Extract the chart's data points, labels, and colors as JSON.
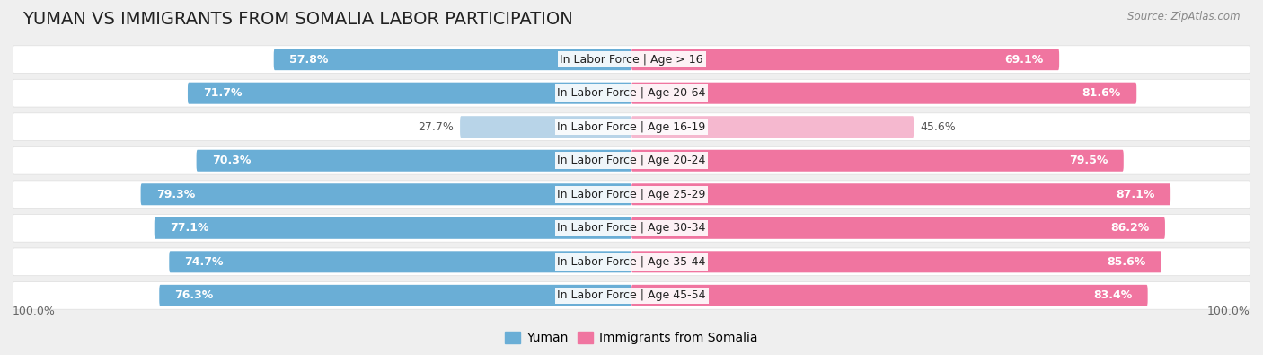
{
  "title": "Yuman vs Immigrants from Somalia Labor Participation",
  "source": "Source: ZipAtlas.com",
  "categories": [
    "In Labor Force | Age > 16",
    "In Labor Force | Age 20-64",
    "In Labor Force | Age 16-19",
    "In Labor Force | Age 20-24",
    "In Labor Force | Age 25-29",
    "In Labor Force | Age 30-34",
    "In Labor Force | Age 35-44",
    "In Labor Force | Age 45-54"
  ],
  "yuman_values": [
    57.8,
    71.7,
    27.7,
    70.3,
    79.3,
    77.1,
    74.7,
    76.3
  ],
  "somalia_values": [
    69.1,
    81.6,
    45.6,
    79.5,
    87.1,
    86.2,
    85.6,
    83.4
  ],
  "yuman_color_strong": "#6aaed6",
  "yuman_color_light": "#b8d4e8",
  "somalia_color_strong": "#f075a0",
  "somalia_color_light": "#f5b8cf",
  "bg_color": "#efefef",
  "row_bg_color": "#f9f9f9",
  "title_fontsize": 14,
  "label_fontsize": 9,
  "value_fontsize": 9,
  "legend_fontsize": 10,
  "axis_label_fontsize": 9,
  "light_rows": [
    2
  ],
  "x_max": 100
}
